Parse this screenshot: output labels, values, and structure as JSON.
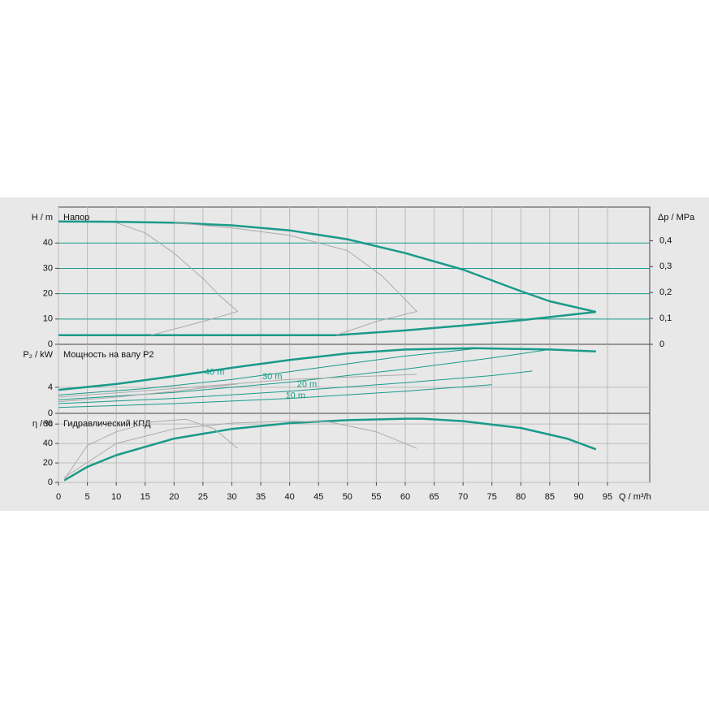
{
  "chart_data": [
    {
      "type": "line",
      "title": "Напор",
      "y_label": "H / m",
      "ylim": [
        0,
        54.2
      ],
      "yticks": [
        0,
        10,
        20,
        30,
        40
      ],
      "grid_color": "#1a9a8a",
      "y2_label": "Δp / MPa",
      "y2lim": [
        0,
        0.53
      ],
      "y2ticks": [
        0,
        {
          "value": 0.1,
          "label": "0,1"
        },
        {
          "value": 0.2,
          "label": "0,2"
        },
        {
          "value": 0.3,
          "label": "0,3"
        },
        {
          "value": 0.4,
          "label": "0,4"
        }
      ],
      "series": [
        {
          "color": "#1a9a8a",
          "width": 2.5,
          "x": [
            0,
            10,
            20,
            30,
            40,
            50,
            60,
            70,
            80,
            85,
            93
          ],
          "values": [
            48.5,
            48.4,
            48,
            47,
            45,
            41.5,
            36,
            29.5,
            21,
            17,
            12.8
          ]
        },
        {
          "color": "#1a9a8a",
          "width": 2.5,
          "x": [
            0,
            20,
            40,
            48,
            60,
            70,
            80,
            93
          ],
          "values": [
            3.6,
            3.6,
            3.6,
            3.6,
            5.5,
            7.4,
            9.5,
            12.8
          ]
        },
        {
          "color": "#aaaaaa",
          "width": 1,
          "x": [
            10,
            15,
            20,
            25,
            28,
            31,
            25,
            16
          ],
          "values": [
            48,
            44,
            36,
            26,
            19,
            13,
            9,
            3.6
          ]
        },
        {
          "color": "#aaaaaa",
          "width": 1,
          "x": [
            20,
            30,
            40,
            50,
            56,
            62,
            55,
            48
          ],
          "values": [
            48,
            46,
            43,
            37,
            27,
            13,
            9,
            3.6
          ]
        }
      ]
    },
    {
      "type": "line",
      "title": "Мощность на валу P2",
      "y_label": "P₂ / kW",
      "ylim": [
        0,
        10.6
      ],
      "yticks": [
        0,
        4
      ],
      "grid_color": "#bbbbbb",
      "series": [
        {
          "color": "#1a9a8a",
          "width": 2.5,
          "x": [
            0,
            10,
            20,
            30,
            40,
            50,
            60,
            72,
            85,
            93
          ],
          "values": [
            3.6,
            4.5,
            5.7,
            7,
            8.2,
            9.2,
            9.8,
            10,
            9.8,
            9.5
          ]
        },
        {
          "name": "40 m",
          "color": "#1a9a8a",
          "width": 1,
          "x": [
            0,
            15,
            30,
            45,
            60,
            73
          ],
          "values": [
            2.8,
            3.8,
            5.2,
            7,
            8.8,
            10
          ]
        },
        {
          "name": "30 m",
          "color": "#1a9a8a",
          "width": 1,
          "x": [
            0,
            20,
            40,
            60,
            75,
            85
          ],
          "values": [
            2.1,
            3.2,
            4.8,
            6.8,
            8.5,
            9.8
          ]
        },
        {
          "name": "20 m",
          "color": "#1a9a8a",
          "width": 1,
          "x": [
            0,
            20,
            40,
            60,
            75,
            82
          ],
          "values": [
            1.5,
            2.3,
            3.4,
            4.7,
            5.8,
            6.5
          ]
        },
        {
          "name": "10 m",
          "color": "#1a9a8a",
          "width": 1,
          "x": [
            0,
            20,
            40,
            60,
            75
          ],
          "values": [
            0.9,
            1.5,
            2.3,
            3.4,
            4.4
          ]
        },
        {
          "color": "#aaaaaa",
          "width": 1,
          "x": [
            0,
            10,
            20,
            31
          ],
          "values": [
            1.8,
            2.5,
            3.4,
            4.5
          ]
        },
        {
          "color": "#aaaaaa",
          "width": 1,
          "x": [
            0,
            20,
            40,
            62
          ],
          "values": [
            2.5,
            3.8,
            5.2,
            6
          ]
        }
      ],
      "annotations": [
        {
          "text": "40 m",
          "x": 27,
          "y": 6.3
        },
        {
          "text": "30 m",
          "x": 37,
          "y": 5.6
        },
        {
          "text": "20 m",
          "x": 43,
          "y": 4.4
        },
        {
          "text": "10 m",
          "x": 41,
          "y": 2.7
        }
      ]
    },
    {
      "type": "line",
      "title": "Гидравлический КПД",
      "y_label": "η / %",
      "ylim": [
        0,
        71
      ],
      "yticks": [
        0,
        20,
        40,
        60
      ],
      "grid_color": "#bbbbbb",
      "x_label": "Q / m³/h",
      "xlim": [
        0,
        102.3
      ],
      "xticks": [
        0,
        5,
        10,
        15,
        20,
        25,
        30,
        35,
        40,
        45,
        50,
        55,
        60,
        65,
        70,
        75,
        80,
        85,
        90,
        95
      ],
      "series": [
        {
          "color": "#1a9a8a",
          "width": 2.5,
          "x": [
            1,
            5,
            10,
            20,
            30,
            40,
            50,
            60,
            63,
            70,
            80,
            88,
            93
          ],
          "values": [
            2,
            16,
            28,
            45,
            55,
            61,
            64,
            65.5,
            65.5,
            63,
            56,
            45,
            34
          ]
        },
        {
          "color": "#aaaaaa",
          "width": 1,
          "x": [
            1,
            5,
            10,
            16,
            22,
            27,
            31
          ],
          "values": [
            3,
            38,
            52,
            62,
            65,
            55,
            35
          ]
        },
        {
          "color": "#aaaaaa",
          "width": 1,
          "x": [
            1,
            10,
            20,
            30,
            40,
            47,
            55,
            62
          ],
          "values": [
            5,
            40,
            55,
            61,
            63,
            62,
            52,
            35
          ]
        }
      ]
    }
  ]
}
